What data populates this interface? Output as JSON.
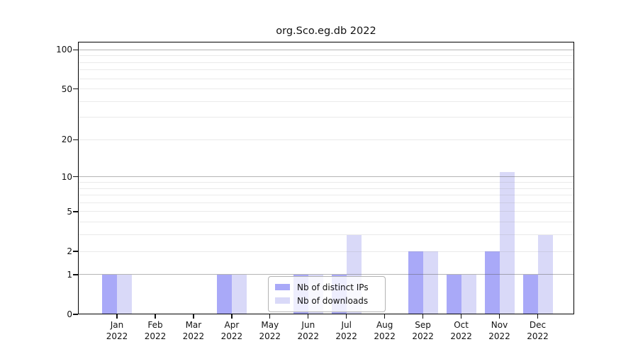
{
  "chart_data": {
    "type": "bar",
    "title": "org.Sco.eg.db 2022",
    "scale": "log1p",
    "grid": "horizontal, minor lines at 2-9 and 20-90, major lines at 1, 10, 100",
    "legend_position": "bottom-center",
    "categories": [
      "Jan",
      "Feb",
      "Mar",
      "Apr",
      "May",
      "Jun",
      "Jul",
      "Aug",
      "Sep",
      "Oct",
      "Nov",
      "Dec"
    ],
    "category_sublabel": "2022",
    "y_ticks": [
      0,
      1,
      2,
      5,
      10,
      20,
      50,
      100
    ],
    "ylim": [
      0,
      115
    ],
    "series": [
      {
        "name": "Nb of distinct IPs",
        "color": "#a9a9f8",
        "values": [
          1,
          0,
          0,
          1,
          0,
          1,
          1,
          0,
          2,
          1,
          2,
          1
        ]
      },
      {
        "name": "Nb of downloads",
        "color": "#d9d9f8",
        "values": [
          1,
          0,
          0,
          1,
          0,
          1,
          3,
          0,
          2,
          1,
          11,
          3
        ]
      }
    ]
  }
}
